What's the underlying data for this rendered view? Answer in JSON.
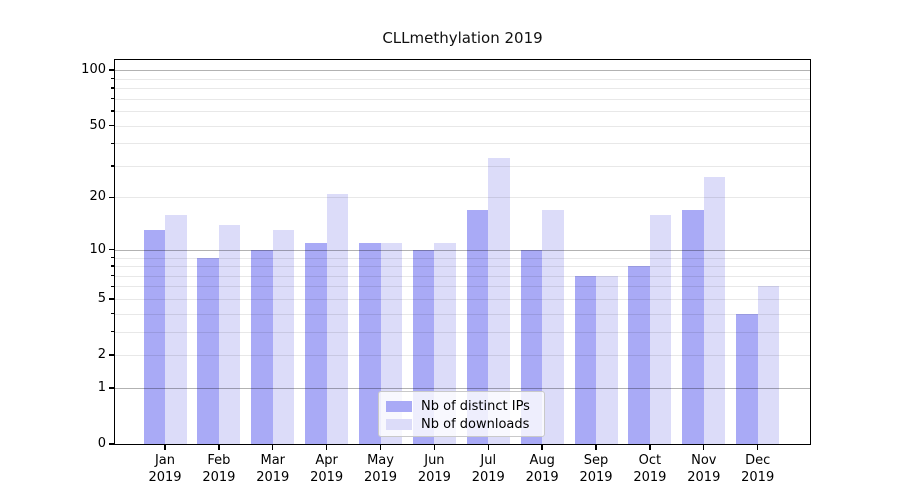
{
  "figure": {
    "title": "CLLmethylation 2019"
  },
  "chart_data": {
    "type": "bar",
    "title": "CLLmethylation 2019",
    "categories": [
      "Jan 2019",
      "Feb 2019",
      "Mar 2019",
      "Apr 2019",
      "May 2019",
      "Jun 2019",
      "Jul 2019",
      "Aug 2019",
      "Sep 2019",
      "Oct 2019",
      "Nov 2019",
      "Dec 2019"
    ],
    "months": [
      "Jan",
      "Feb",
      "Mar",
      "Apr",
      "May",
      "Jun",
      "Jul",
      "Aug",
      "Sep",
      "Oct",
      "Nov",
      "Dec"
    ],
    "year": "2019",
    "series": [
      {
        "name": "Nb of distinct IPs",
        "color": "#a9aaf6",
        "values": [
          13,
          9,
          10,
          11,
          11,
          10,
          17,
          10,
          7,
          8,
          17,
          4
        ]
      },
      {
        "name": "Nb of downloads",
        "color": "#dcdcf9",
        "values": [
          16,
          14,
          13,
          21,
          11,
          11,
          33,
          17,
          7,
          16,
          26,
          6
        ]
      }
    ],
    "xlabel": "",
    "ylabel": "",
    "yscale": "log10(1+y)",
    "ylim": [
      0,
      115
    ],
    "yticks": [
      0,
      1,
      2,
      5,
      10,
      20,
      50,
      100
    ],
    "grid": true,
    "grid_values": [
      1,
      2,
      3,
      4,
      5,
      6,
      7,
      8,
      9,
      10,
      20,
      30,
      40,
      50,
      60,
      70,
      80,
      90,
      100
    ],
    "grid_major": [
      1,
      10,
      100
    ],
    "legend_position": "bottom-center-inside",
    "colors": {
      "distinct_ips": "#a9aaf6",
      "downloads": "#dcdcf9",
      "grid_major": "#b3b3b3",
      "grid_minor": "#e8e8e8",
      "spine": "#000000",
      "background": "#ffffff",
      "text": "#000000"
    }
  }
}
